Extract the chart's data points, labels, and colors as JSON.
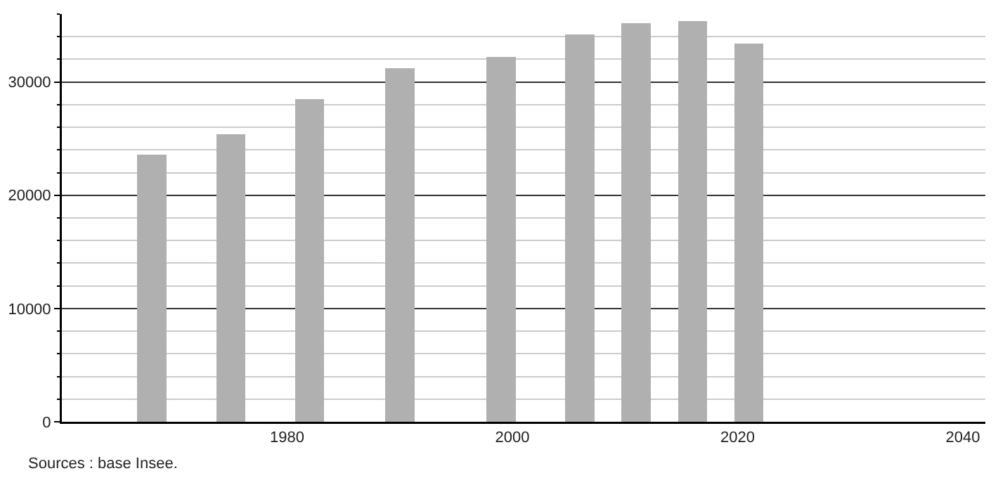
{
  "chart_data": {
    "type": "bar",
    "x": [
      1968,
      1975,
      1982,
      1990,
      1999,
      2006,
      2011,
      2016,
      2021
    ],
    "values": [
      23600,
      25400,
      28500,
      31200,
      32200,
      34200,
      35200,
      35400,
      33400
    ],
    "color": "#b0b0b0",
    "xlim": [
      1960,
      2042
    ],
    "xticks": [
      1980,
      2000,
      2020,
      2040
    ],
    "ylim": [
      0,
      36000
    ],
    "yticks": [
      0,
      {
        "value": 2000,
        "label": null
      },
      {
        "value": 4000,
        "label": null
      },
      {
        "value": 6000,
        "label": null
      },
      {
        "value": 8000,
        "label": null
      },
      10000,
      {
        "value": 12000,
        "label": null
      },
      {
        "value": 14000,
        "label": null
      },
      {
        "value": 16000,
        "label": null
      },
      {
        "value": 18000,
        "label": null
      },
      20000,
      {
        "value": 22000,
        "label": null
      },
      {
        "value": 24000,
        "label": null
      },
      {
        "value": 26000,
        "label": null
      },
      {
        "value": 28000,
        "label": null
      },
      30000,
      {
        "value": 32000,
        "label": null
      },
      {
        "value": 34000,
        "label": null
      },
      {
        "value": 36000,
        "label": null
      }
    ],
    "grid": "y",
    "annotations": [
      "Sources : base Insee."
    ]
  }
}
